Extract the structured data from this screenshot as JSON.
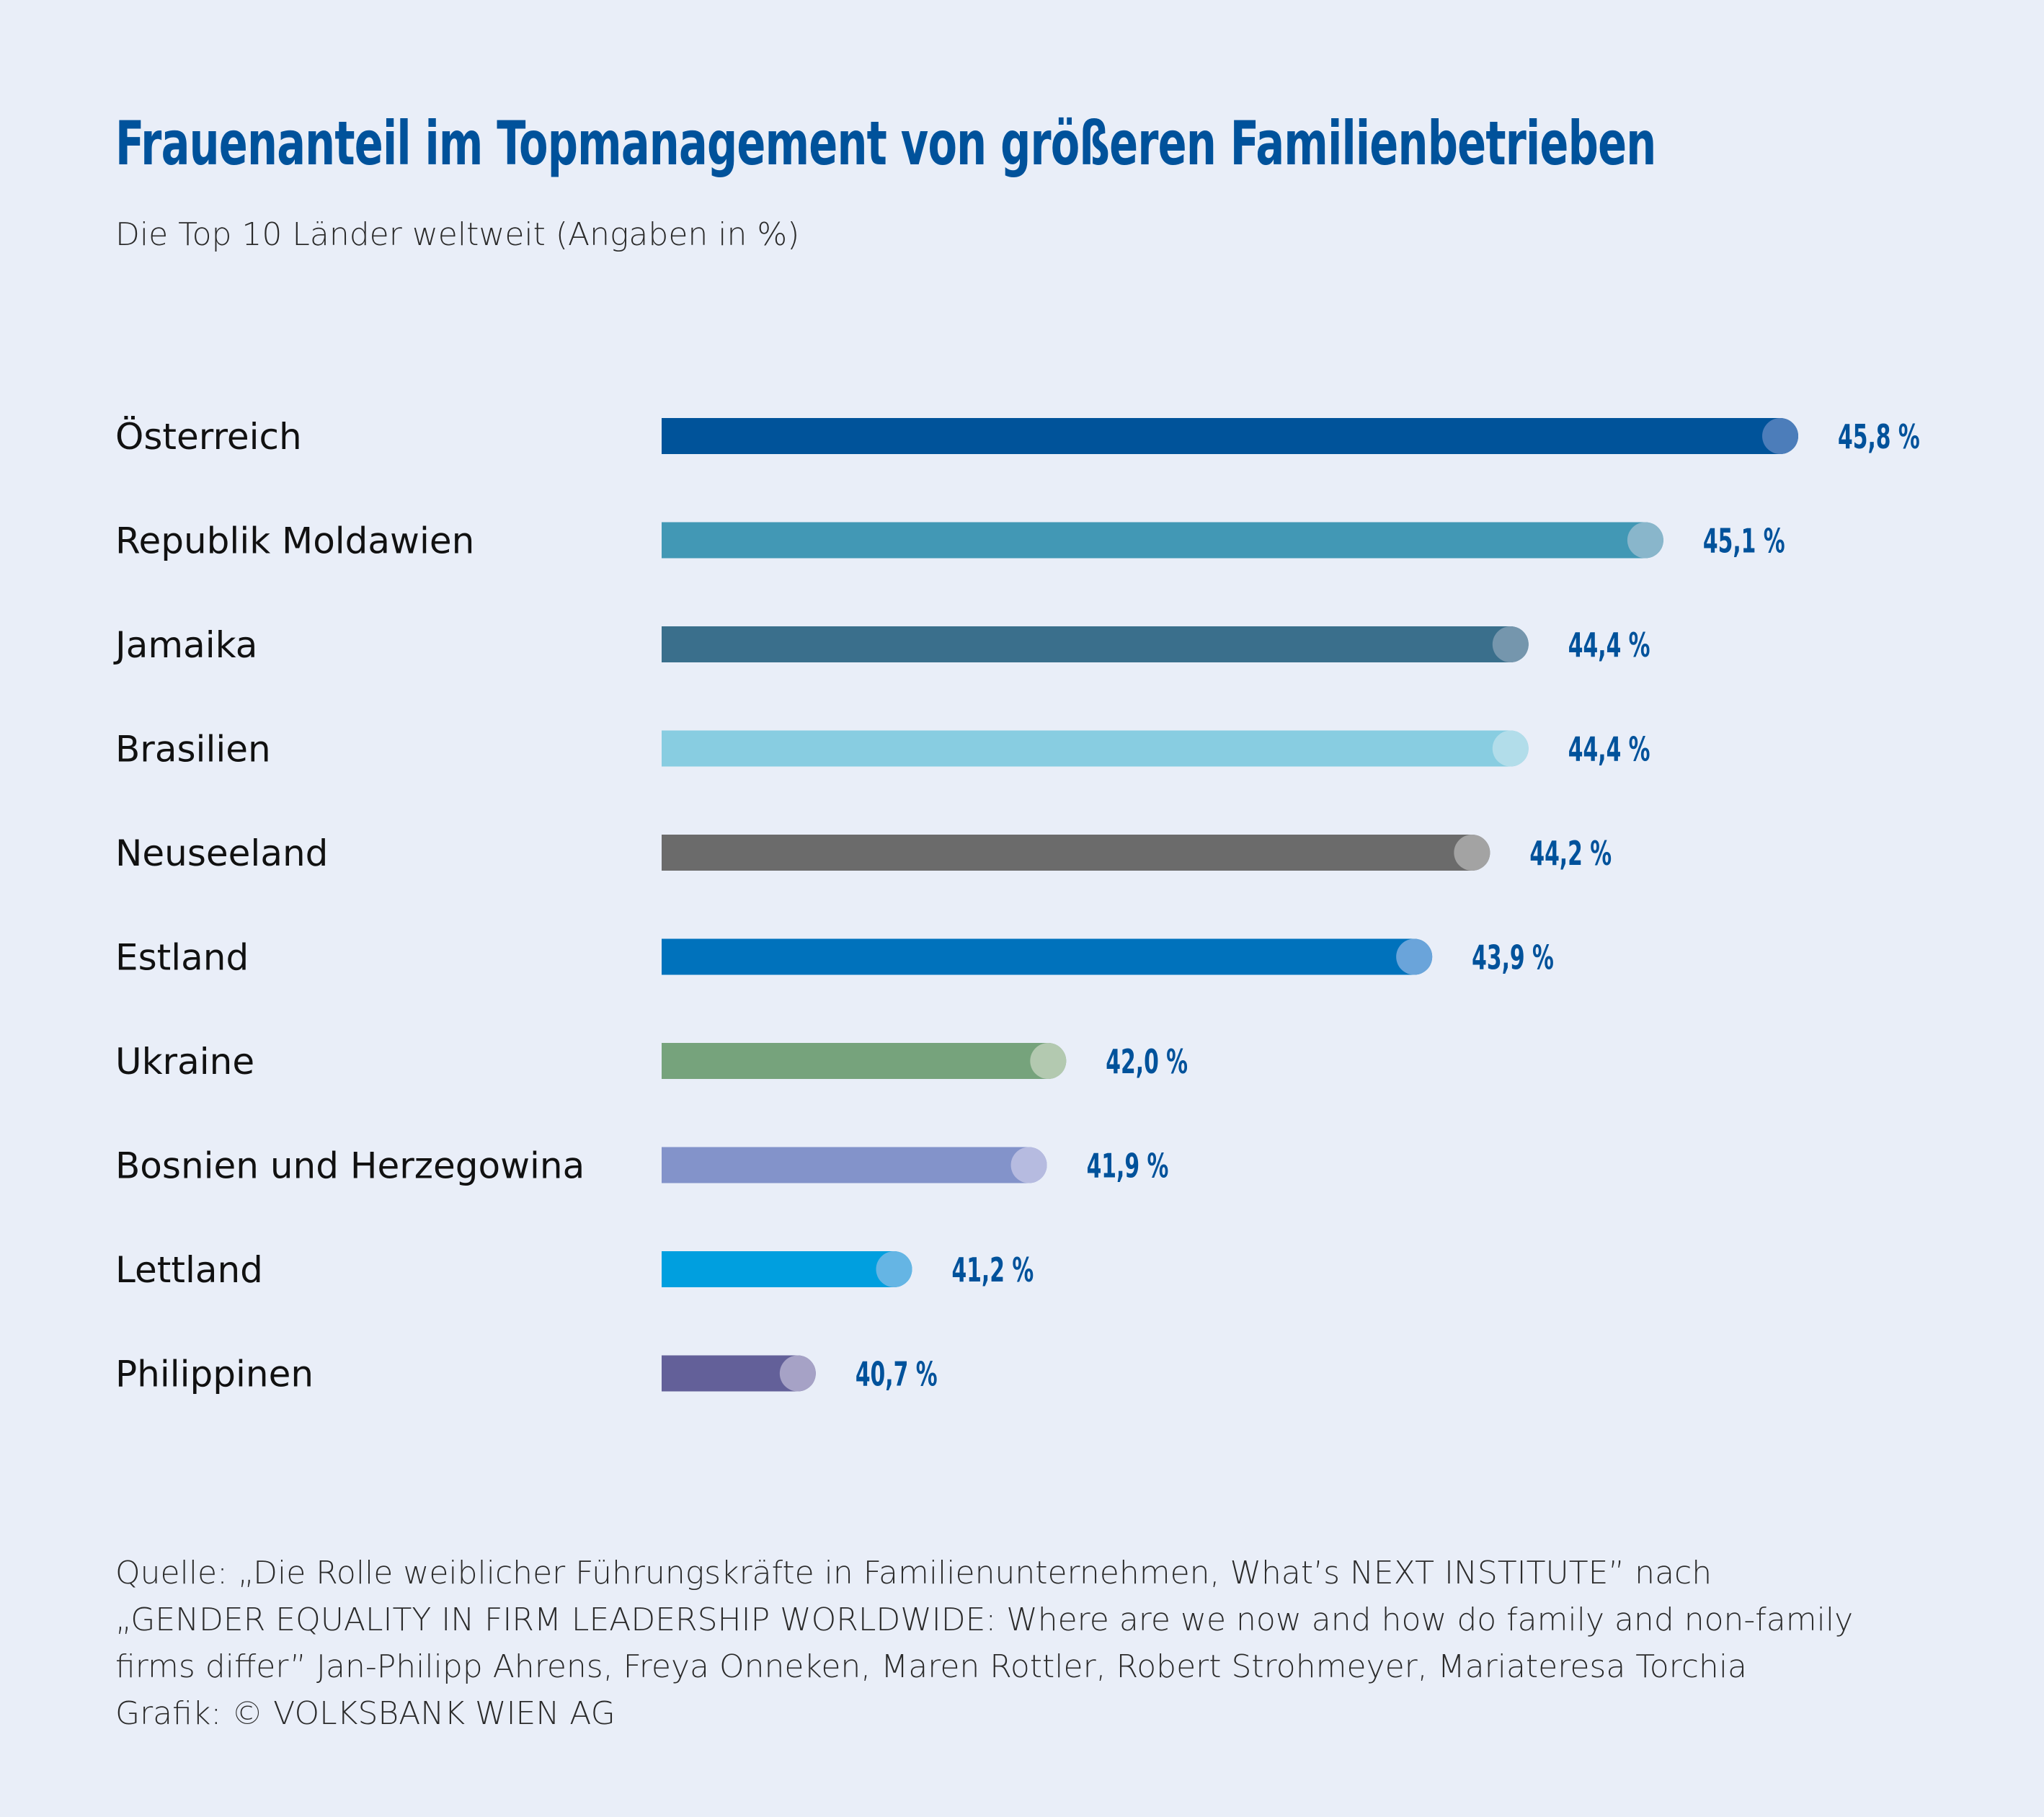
{
  "chart_data": {
    "type": "bar",
    "orientation": "horizontal",
    "title": "Frauenanteil im Topmanagement von größeren Familienbetrieben",
    "subtitle": "Die Top 10 Länder weltweit (Angaben in %)",
    "xlabel": "",
    "ylabel": "",
    "xlim": [
      39.9,
      45.8
    ],
    "grid": false,
    "unit": "%",
    "categories": [
      "Österreich",
      "Republik Moldawien",
      "Jamaika",
      "Brasilien",
      "Neuseeland",
      "Estland",
      "Ukraine",
      "Bosnien und Herzegowina",
      "Lettland",
      "Philippinen"
    ],
    "values": [
      45.8,
      45.1,
      44.4,
      44.4,
      44.2,
      43.9,
      42.0,
      41.9,
      41.2,
      40.7
    ],
    "value_labels": [
      "45,8 %",
      "45,1 %",
      "44,4 %",
      "44,4 %",
      "44,2 %",
      "43,9 %",
      "42,0 %",
      "41,9 %",
      "41,2 %",
      "40,7 %"
    ],
    "bar_colors": [
      "#00539a",
      "#4298b5",
      "#3a6f8c",
      "#88cde1",
      "#6b6b6b",
      "#0072bc",
      "#76a37c",
      "#8393ca",
      "#009fdf",
      "#636099"
    ],
    "cap_colors": [
      "#4c7dba",
      "#89b6cb",
      "#7596ad",
      "#b2ddea",
      "#a3a3a3",
      "#6aa4da",
      "#b3c9b0",
      "#b6bbe0",
      "#65b5e4",
      "#a6a2c6"
    ]
  },
  "source_lines": [
    "Quelle: „Die Rolle weiblicher Führungskräfte in Familienunternehmen, What’s NEXT INSTITUTE” nach",
    "„GENDER EQUALITY IN FIRM LEADERSHIP WORLDWIDE: Where are we now and how do family and non-family",
    "firms differ” Jan-Philipp Ahrens, Freya Onneken, Maren Rottler, Robert Strohmeyer, Mariateresa Torchia",
    "Grafik: © VOLKSBANK WIEN AG"
  ],
  "colors": {
    "background": "#e9eef8",
    "title": "#00529b",
    "value_text": "#00529b"
  }
}
